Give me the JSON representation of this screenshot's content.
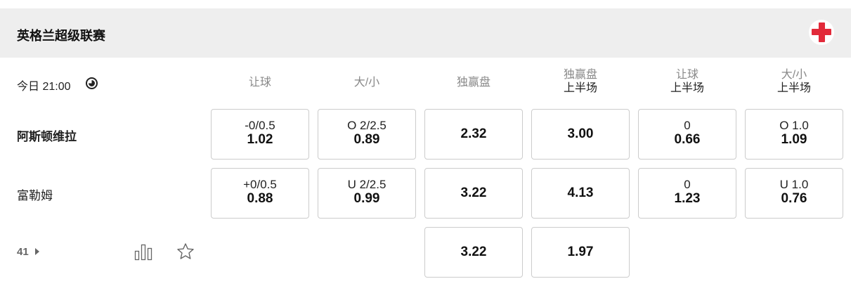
{
  "league": {
    "title": "英格兰超级联赛",
    "flag_icon": "england-flag-icon",
    "flag_color": "#e22a3a"
  },
  "match": {
    "time": "今日 21:00",
    "clock_icon": "clock-icon"
  },
  "columns": [
    {
      "label": "让球",
      "sub": ""
    },
    {
      "label": "大/小",
      "sub": ""
    },
    {
      "label": "独赢盘",
      "sub": ""
    },
    {
      "label": "独赢盘",
      "sub": "上半场"
    },
    {
      "label": "让球",
      "sub": "上半场"
    },
    {
      "label": "大/小",
      "sub": "上半场"
    }
  ],
  "teams": [
    {
      "name": "阿斯顿维拉",
      "bold": true,
      "odds": [
        {
          "line": "-0/0.5",
          "odd": "1.02"
        },
        {
          "line": "O 2/2.5",
          "odd": "0.89"
        },
        {
          "line": "",
          "odd": "2.32"
        },
        {
          "line": "",
          "odd": "3.00"
        },
        {
          "line": "0",
          "odd": "0.66"
        },
        {
          "line": "O 1.0",
          "odd": "1.09"
        }
      ]
    },
    {
      "name": "富勒姆",
      "bold": false,
      "odds": [
        {
          "line": "+0/0.5",
          "odd": "0.88"
        },
        {
          "line": "U 2/2.5",
          "odd": "0.99"
        },
        {
          "line": "",
          "odd": "3.22"
        },
        {
          "line": "",
          "odd": "4.13"
        },
        {
          "line": "0",
          "odd": "1.23"
        },
        {
          "line": "U 1.0",
          "odd": "0.76"
        }
      ]
    }
  ],
  "draw": {
    "odds": [
      "3.22",
      "1.97"
    ]
  },
  "footer": {
    "more_count": "41",
    "stats_icon": "bar-chart-icon",
    "favorite_icon": "star-icon"
  }
}
